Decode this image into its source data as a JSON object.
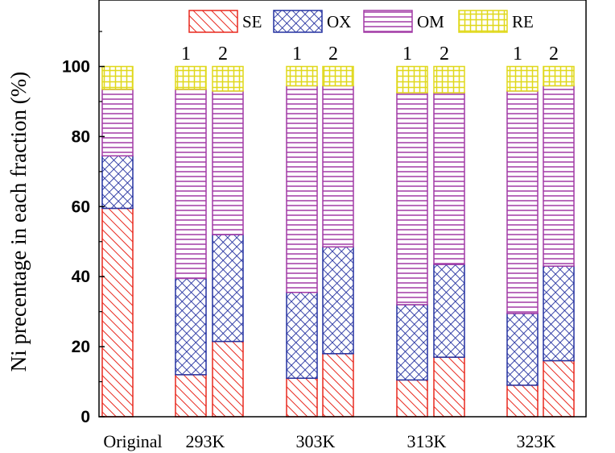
{
  "chart_data": {
    "type": "stacked-bar",
    "ylabel": "Ni precentage in each fraction (%)",
    "ylim": [
      0,
      116
    ],
    "yticks": [
      0,
      20,
      40,
      60,
      80,
      100
    ],
    "bars": [
      {
        "label": "Original",
        "values": {
          "SE": 59.5,
          "OX": 15.0,
          "OM": 19.0,
          "RE": 6.5
        }
      },
      {
        "label": "293K-1",
        "values": {
          "SE": 12.0,
          "OX": 27.5,
          "OM": 54.0,
          "RE": 6.5
        }
      },
      {
        "label": "293K-2",
        "values": {
          "SE": 21.5,
          "OX": 30.5,
          "OM": 41.0,
          "RE": 7.0
        }
      },
      {
        "label": "303K-1",
        "values": {
          "SE": 11.0,
          "OX": 24.5,
          "OM": 59.0,
          "RE": 5.5
        }
      },
      {
        "label": "303K-2",
        "values": {
          "SE": 18.0,
          "OX": 30.5,
          "OM": 46.0,
          "RE": 5.5
        }
      },
      {
        "label": "313K-1",
        "values": {
          "SE": 10.5,
          "OX": 21.5,
          "OM": 60.5,
          "RE": 7.5
        }
      },
      {
        "label": "313K-2",
        "values": {
          "SE": 17.0,
          "OX": 26.5,
          "OM": 49.0,
          "RE": 7.5
        }
      },
      {
        "label": "323K-1",
        "values": {
          "SE": 9.0,
          "OX": 20.5,
          "OM": 63.5,
          "RE": 7.0
        }
      },
      {
        "label": "323K-2",
        "values": {
          "SE": 16.0,
          "OX": 27.0,
          "OM": 51.5,
          "RE": 5.5
        }
      }
    ],
    "series": [
      {
        "name": "SE",
        "color": "#e8281e",
        "pattern": "diagonal-hatch"
      },
      {
        "name": "OX",
        "color": "#2431a0",
        "pattern": "crosshatch"
      },
      {
        "name": "OM",
        "color": "#a23aa6",
        "pattern": "horizontal-lines"
      },
      {
        "name": "RE",
        "color": "#e0d81a",
        "pattern": "grid"
      }
    ],
    "categories": [
      "Original",
      "293K",
      "303K",
      "313K",
      "323K"
    ],
    "sub_labels": [
      "1",
      "2"
    ],
    "legend_position": "top"
  }
}
